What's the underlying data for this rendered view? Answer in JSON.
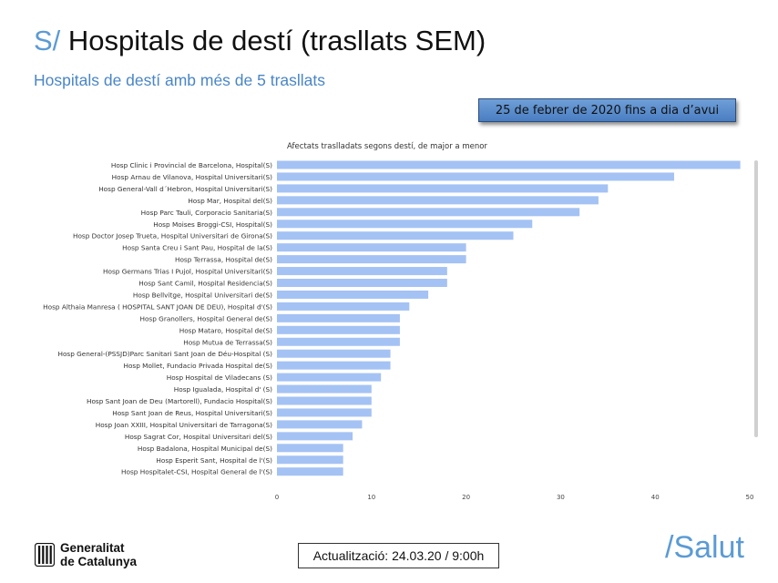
{
  "header": {
    "title_prefix": "S/",
    "title": "Hospitals de destí (trasllats SEM)",
    "subtitle": "Hospitals de destí amb més de 5 trasllats",
    "date_range": "25 de febrer de 2020 fins a dia d’avui"
  },
  "chart_data": {
    "type": "bar",
    "orientation": "horizontal",
    "title": "Afectats traslladats segons destí, de major a menor",
    "categories": [
      "Hosp Clinic i Provincial de Barcelona, Hospital(S)",
      "Hosp Arnau de Vilanova, Hospital Universitari(S)",
      "Hosp General-Vall d´Hebron, Hospital Universitari(S)",
      "Hosp Mar, Hospital del(S)",
      "Hosp Parc Tauli, Corporacio Sanitaria(S)",
      "Hosp Moises Broggi-CSI, Hospital(S)",
      "Hosp Doctor Josep Trueta, Hospital Universitari de Girona(S)",
      "Hosp Santa Creu i Sant Pau, Hospital de la(S)",
      "Hosp Terrassa, Hospital de(S)",
      "Hosp Germans Trias I Pujol, Hospital Universitari(S)",
      "Hosp Sant Camil, Hospital Residencia(S)",
      "Hosp Bellvitge, Hospital Universitari de(S)",
      "Hosp Althaia Manresa ( HOSPITAL SANT JOAN DE DEU), Hospital d'(S)",
      "Hosp Granollers, Hospital General de(S)",
      "Hosp Mataro, Hospital de(S)",
      "Hosp Mutua de Terrassa(S)",
      "Hosp General-(PSSJD)Parc Sanitari Sant Joan de Déu-Hospital (S)",
      "Hosp Mollet, Fundacio Privada Hospital de(S)",
      "Hosp Hospital de Viladecans (S)",
      "Hosp Igualada, Hospital d' (S)",
      "Hosp Sant Joan de Deu (Martorell), Fundacio Hospital(S)",
      "Hosp Sant Joan de Reus, Hospital Universitari(S)",
      "Hosp Joan XXIII, Hospital Universitari de Tarragona(S)",
      "Hosp Sagrat Cor, Hospital Universitari del(S)",
      "Hosp Badalona, Hospital Municipal de(S)",
      "Hosp Esperit Sant, Hospital de l'(S)",
      "Hosp Hospitalet-CSI, Hospital General de l'(S)"
    ],
    "values": [
      49,
      42,
      35,
      34,
      32,
      27,
      25,
      20,
      20,
      18,
      18,
      16,
      14,
      13,
      13,
      13,
      12,
      12,
      11,
      10,
      10,
      10,
      9,
      8,
      7,
      7,
      7
    ],
    "xlim": [
      0,
      50
    ],
    "xticks": [
      "0",
      "10",
      "20",
      "30",
      "40",
      "50"
    ],
    "xlabel": "",
    "ylabel": "",
    "bar_color": "#a4c2f4",
    "grid": false
  },
  "footer": {
    "logo_line1": "Generalitat",
    "logo_line2": "de Catalunya",
    "update": "Actualització: 24.03.20 / 9:00h",
    "brand": "/Salut"
  },
  "colors": {
    "accent": "#5b9bd5",
    "bar": "#a4c2f4",
    "date_box": "#5b8dd0"
  }
}
